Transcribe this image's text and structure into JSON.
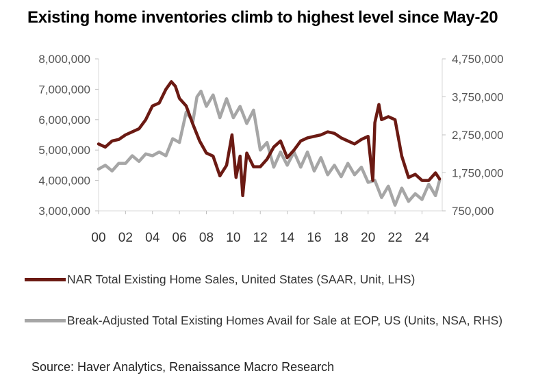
{
  "title": "Existing home inventories climb to highest level since May-20",
  "source": "Source: Haver Analytics, Renaissance Macro Research",
  "chart_data": {
    "type": "line",
    "title": "Existing home inventories climb to highest level since May-20",
    "left_axis": {
      "min": 3000000,
      "max": 8000000,
      "ticks": [
        "3,000,000",
        "4,000,000",
        "5,000,000",
        "6,000,000",
        "7,000,000",
        "8,000,000"
      ]
    },
    "right_axis": {
      "min": 750000,
      "max": 4750000,
      "ticks": [
        "750,000",
        "1,750,000",
        "2,750,000",
        "3,750,000",
        "4,750,000"
      ]
    },
    "x_axis": {
      "min": 2000,
      "max": 2025.5,
      "ticks": [
        "00",
        "02",
        "04",
        "06",
        "08",
        "10",
        "12",
        "14",
        "16",
        "18",
        "20",
        "22",
        "24"
      ]
    },
    "grid": false,
    "legend_position": "bottom",
    "series": [
      {
        "name": "NAR Total Existing Home Sales, United States (SAAR, Unit, LHS)",
        "axis": "left",
        "color": "#6b1a13",
        "x": [
          2000.0,
          2000.5,
          2001.0,
          2001.5,
          2002.0,
          2002.5,
          2003.0,
          2003.5,
          2004.0,
          2004.5,
          2005.0,
          2005.4,
          2005.7,
          2006.0,
          2006.5,
          2007.0,
          2007.5,
          2008.0,
          2008.5,
          2009.0,
          2009.5,
          2009.9,
          2010.2,
          2010.5,
          2010.7,
          2011.0,
          2011.5,
          2012.0,
          2012.5,
          2013.0,
          2013.5,
          2014.0,
          2014.5,
          2015.0,
          2015.5,
          2016.0,
          2016.5,
          2017.0,
          2017.5,
          2018.0,
          2018.5,
          2019.0,
          2019.5,
          2020.0,
          2020.35,
          2020.5,
          2020.8,
          2021.0,
          2021.5,
          2022.0,
          2022.5,
          2023.0,
          2023.5,
          2024.0,
          2024.5,
          2025.0,
          2025.3
        ],
        "y": [
          5200000,
          5100000,
          5300000,
          5350000,
          5500000,
          5600000,
          5700000,
          6000000,
          6450000,
          6550000,
          7000000,
          7250000,
          7100000,
          6700000,
          6450000,
          5850000,
          5300000,
          4900000,
          4800000,
          4150000,
          4500000,
          5500000,
          4100000,
          4800000,
          3500000,
          4900000,
          4450000,
          4450000,
          4700000,
          5100000,
          5300000,
          4750000,
          5000000,
          5300000,
          5400000,
          5450000,
          5500000,
          5600000,
          5550000,
          5400000,
          5300000,
          5200000,
          5350000,
          5450000,
          4000000,
          5900000,
          6500000,
          6000000,
          6100000,
          6000000,
          4800000,
          4100000,
          4200000,
          4000000,
          4000000,
          4250000,
          4050000
        ]
      },
      {
        "name": "Break-Adjusted Total Existing Homes Avail for Sale at EOP, US (Units, NSA, RHS)",
        "axis": "right",
        "color": "#a6a6a6",
        "x": [
          2000.0,
          2000.5,
          2001.0,
          2001.5,
          2002.0,
          2002.5,
          2003.0,
          2003.5,
          2004.0,
          2004.5,
          2005.0,
          2005.5,
          2006.0,
          2006.5,
          2007.0,
          2007.3,
          2007.6,
          2008.0,
          2008.5,
          2009.0,
          2009.5,
          2010.0,
          2010.5,
          2011.0,
          2011.5,
          2012.0,
          2012.5,
          2013.0,
          2013.5,
          2014.0,
          2014.5,
          2015.0,
          2015.5,
          2016.0,
          2016.5,
          2017.0,
          2017.5,
          2018.0,
          2018.5,
          2019.0,
          2019.5,
          2020.0,
          2020.5,
          2021.0,
          2021.5,
          2022.0,
          2022.5,
          2023.0,
          2023.5,
          2024.0,
          2024.5,
          2025.0,
          2025.3
        ],
        "y": [
          1850000,
          1950000,
          1800000,
          2000000,
          2000000,
          2200000,
          2050000,
          2250000,
          2200000,
          2300000,
          2200000,
          2650000,
          2550000,
          3350000,
          3100000,
          3750000,
          3900000,
          3500000,
          3800000,
          3200000,
          3700000,
          3200000,
          3500000,
          3050000,
          3400000,
          2350000,
          2550000,
          1900000,
          2300000,
          1950000,
          2300000,
          1900000,
          2300000,
          1800000,
          2150000,
          1700000,
          1950000,
          1650000,
          2000000,
          1700000,
          1900000,
          1500000,
          1550000,
          1100000,
          1400000,
          900000,
          1350000,
          1000000,
          1200000,
          1050000,
          1450000,
          1150000,
          1550000
        ]
      }
    ]
  }
}
